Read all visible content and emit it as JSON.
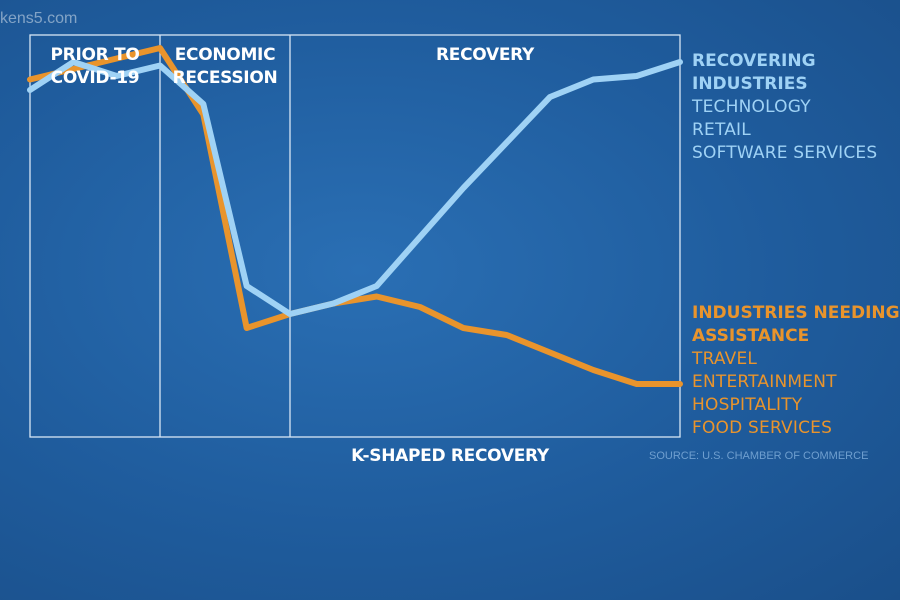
{
  "watermark": "kens5.com",
  "chart_data": {
    "type": "line",
    "title": "K-SHAPED RECOVERY",
    "xlabel": "K-SHAPED RECOVERY",
    "ylabel": "",
    "x": [
      0,
      1,
      2,
      3,
      4,
      5,
      6,
      7,
      8,
      9,
      10,
      11,
      12,
      13,
      14,
      15
    ],
    "ylim": [
      0,
      100
    ],
    "phases": [
      {
        "label": "PRIOR TO\nCOVID-19",
        "start": 0,
        "end": 3
      },
      {
        "label": "ECONOMIC\nRECESSION",
        "start": 3,
        "end": 6
      },
      {
        "label": "RECOVERY",
        "start": 6,
        "end": 15
      }
    ],
    "series": [
      {
        "name": "INDUSTRIES NEEDING ASSISTANCE",
        "color": "#e9942c",
        "values": [
          95,
          98,
          101,
          104,
          85,
          24,
          28,
          31,
          33,
          30,
          24,
          22,
          17,
          12,
          8,
          8
        ],
        "items": [
          "TRAVEL",
          "ENTERTAINMENT",
          "HOSPITALITY",
          "FOOD SERVICES"
        ]
      },
      {
        "name": "RECOVERING INDUSTRIES",
        "color": "#9fd2f5",
        "values": [
          92,
          100,
          96,
          99,
          88,
          36,
          28,
          31,
          36,
          50,
          64,
          77,
          90,
          95,
          96,
          100
        ],
        "items": [
          "TECHNOLOGY",
          "RETAIL",
          "SOFTWARE SERVICES"
        ]
      }
    ]
  },
  "source": "SOURCE: U.S. CHAMBER OF COMMERCE"
}
